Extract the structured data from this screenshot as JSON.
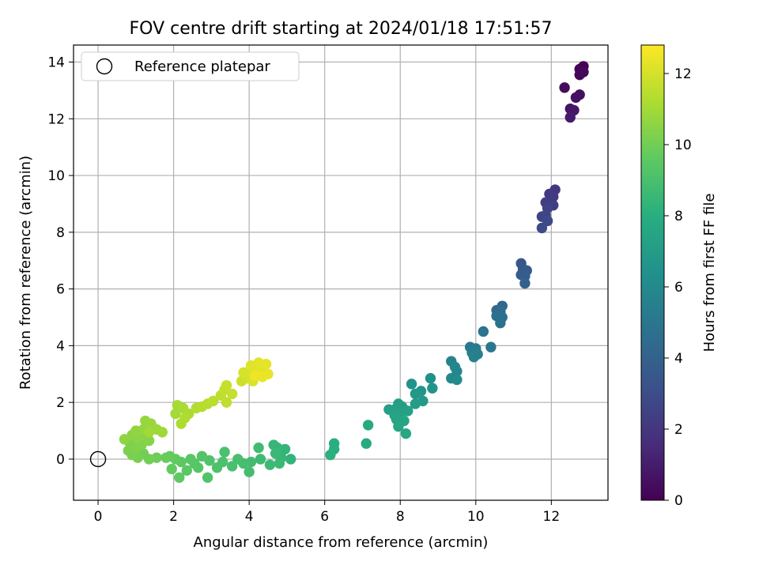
{
  "chart_data": {
    "type": "scatter",
    "title": "FOV centre drift starting at 2024/01/18 17:51:57",
    "xlabel": "Angular distance from reference (arcmin)",
    "ylabel": "Rotation from reference (arcmin)",
    "xlim": [
      -0.65,
      13.5
    ],
    "ylim": [
      -1.45,
      14.6
    ],
    "xticks": [
      0,
      2,
      4,
      6,
      8,
      10,
      12
    ],
    "yticks": [
      0,
      2,
      4,
      6,
      8,
      10,
      12,
      14
    ],
    "grid": true,
    "legend": {
      "position": "top-left",
      "entries": [
        "Reference platepar"
      ]
    },
    "reference_point": {
      "x": 0,
      "y": 0
    },
    "colorbar": {
      "label": "Hours from first FF file",
      "colormap": "viridis",
      "range": [
        0,
        12.8
      ],
      "ticks": [
        0,
        2,
        4,
        6,
        8,
        10,
        12
      ]
    },
    "points": [
      {
        "x": 12.75,
        "y": 13.75,
        "c": 0.0
      },
      {
        "x": 12.85,
        "y": 13.85,
        "c": 0.1
      },
      {
        "x": 12.75,
        "y": 13.55,
        "c": 0.2
      },
      {
        "x": 12.85,
        "y": 13.65,
        "c": 0.3
      },
      {
        "x": 12.35,
        "y": 13.1,
        "c": 0.4
      },
      {
        "x": 12.75,
        "y": 12.85,
        "c": 0.5
      },
      {
        "x": 12.65,
        "y": 12.75,
        "c": 0.6
      },
      {
        "x": 12.5,
        "y": 12.35,
        "c": 0.7
      },
      {
        "x": 12.6,
        "y": 12.3,
        "c": 0.8
      },
      {
        "x": 12.5,
        "y": 12.05,
        "c": 0.9
      },
      {
        "x": 12.1,
        "y": 9.5,
        "c": 2.0
      },
      {
        "x": 11.95,
        "y": 9.35,
        "c": 2.1
      },
      {
        "x": 12.05,
        "y": 9.25,
        "c": 2.2
      },
      {
        "x": 11.85,
        "y": 9.05,
        "c": 2.3
      },
      {
        "x": 12.05,
        "y": 8.95,
        "c": 2.4
      },
      {
        "x": 11.9,
        "y": 8.85,
        "c": 2.5
      },
      {
        "x": 11.75,
        "y": 8.55,
        "c": 2.6
      },
      {
        "x": 11.85,
        "y": 8.6,
        "c": 2.7
      },
      {
        "x": 11.9,
        "y": 8.4,
        "c": 2.8
      },
      {
        "x": 11.75,
        "y": 8.15,
        "c": 2.9
      },
      {
        "x": 11.2,
        "y": 6.9,
        "c": 3.4
      },
      {
        "x": 11.25,
        "y": 6.7,
        "c": 3.5
      },
      {
        "x": 11.35,
        "y": 6.65,
        "c": 3.6
      },
      {
        "x": 11.2,
        "y": 6.5,
        "c": 3.7
      },
      {
        "x": 11.3,
        "y": 6.45,
        "c": 3.8
      },
      {
        "x": 11.3,
        "y": 6.2,
        "c": 3.9
      },
      {
        "x": 10.7,
        "y": 5.4,
        "c": 4.3
      },
      {
        "x": 10.55,
        "y": 5.25,
        "c": 4.4
      },
      {
        "x": 10.65,
        "y": 5.2,
        "c": 4.5
      },
      {
        "x": 10.55,
        "y": 5.05,
        "c": 4.6
      },
      {
        "x": 10.7,
        "y": 5.0,
        "c": 4.7
      },
      {
        "x": 10.65,
        "y": 4.8,
        "c": 4.8
      },
      {
        "x": 10.2,
        "y": 4.5,
        "c": 4.9
      },
      {
        "x": 10.4,
        "y": 3.95,
        "c": 5.0
      },
      {
        "x": 9.85,
        "y": 3.95,
        "c": 5.1
      },
      {
        "x": 10.0,
        "y": 3.9,
        "c": 5.2
      },
      {
        "x": 9.9,
        "y": 3.75,
        "c": 5.3
      },
      {
        "x": 10.05,
        "y": 3.7,
        "c": 5.4
      },
      {
        "x": 9.95,
        "y": 3.6,
        "c": 5.5
      },
      {
        "x": 9.35,
        "y": 3.45,
        "c": 5.7
      },
      {
        "x": 9.45,
        "y": 3.25,
        "c": 5.8
      },
      {
        "x": 9.5,
        "y": 3.1,
        "c": 5.9
      },
      {
        "x": 9.35,
        "y": 2.85,
        "c": 6.0
      },
      {
        "x": 9.5,
        "y": 2.8,
        "c": 6.1
      },
      {
        "x": 8.8,
        "y": 2.85,
        "c": 6.4
      },
      {
        "x": 8.3,
        "y": 2.65,
        "c": 6.5
      },
      {
        "x": 8.85,
        "y": 2.5,
        "c": 6.6
      },
      {
        "x": 8.55,
        "y": 2.4,
        "c": 6.7
      },
      {
        "x": 8.4,
        "y": 2.3,
        "c": 6.8
      },
      {
        "x": 8.6,
        "y": 2.05,
        "c": 6.9
      },
      {
        "x": 8.4,
        "y": 1.95,
        "c": 7.0
      },
      {
        "x": 8.05,
        "y": 1.85,
        "c": 7.1
      },
      {
        "x": 7.95,
        "y": 1.95,
        "c": 7.15
      },
      {
        "x": 7.85,
        "y": 1.75,
        "c": 7.2
      },
      {
        "x": 7.7,
        "y": 1.75,
        "c": 7.25
      },
      {
        "x": 8.2,
        "y": 1.7,
        "c": 7.3
      },
      {
        "x": 8.0,
        "y": 1.6,
        "c": 7.35
      },
      {
        "x": 7.85,
        "y": 1.55,
        "c": 7.4
      },
      {
        "x": 7.9,
        "y": 1.4,
        "c": 7.45
      },
      {
        "x": 8.1,
        "y": 1.35,
        "c": 7.5
      },
      {
        "x": 7.95,
        "y": 1.15,
        "c": 7.55
      },
      {
        "x": 8.15,
        "y": 0.9,
        "c": 7.6
      },
      {
        "x": 7.15,
        "y": 1.2,
        "c": 7.7
      },
      {
        "x": 7.1,
        "y": 0.55,
        "c": 7.8
      },
      {
        "x": 6.25,
        "y": 0.55,
        "c": 8.0
      },
      {
        "x": 6.25,
        "y": 0.35,
        "c": 8.05
      },
      {
        "x": 6.15,
        "y": 0.15,
        "c": 8.1
      },
      {
        "x": 5.1,
        "y": 0.0,
        "c": 8.3
      },
      {
        "x": 4.95,
        "y": 0.35,
        "c": 8.35
      },
      {
        "x": 4.85,
        "y": 0.05,
        "c": 8.4
      },
      {
        "x": 4.75,
        "y": 0.4,
        "c": 8.45
      },
      {
        "x": 4.65,
        "y": 0.5,
        "c": 8.5
      },
      {
        "x": 4.7,
        "y": 0.2,
        "c": 8.55
      },
      {
        "x": 4.8,
        "y": -0.15,
        "c": 8.6
      },
      {
        "x": 4.55,
        "y": -0.2,
        "c": 8.65
      },
      {
        "x": 4.3,
        "y": 0.0,
        "c": 8.7
      },
      {
        "x": 4.25,
        "y": 0.4,
        "c": 8.75
      },
      {
        "x": 4.05,
        "y": -0.1,
        "c": 8.8
      },
      {
        "x": 4.0,
        "y": -0.45,
        "c": 8.85
      },
      {
        "x": 3.85,
        "y": -0.15,
        "c": 8.9
      },
      {
        "x": 3.7,
        "y": 0.0,
        "c": 8.95
      },
      {
        "x": 3.55,
        "y": -0.25,
        "c": 9.0
      },
      {
        "x": 3.35,
        "y": 0.25,
        "c": 9.05
      },
      {
        "x": 3.3,
        "y": -0.1,
        "c": 9.1
      },
      {
        "x": 3.15,
        "y": -0.3,
        "c": 9.15
      },
      {
        "x": 2.95,
        "y": -0.05,
        "c": 9.2
      },
      {
        "x": 2.9,
        "y": -0.65,
        "c": 9.25
      },
      {
        "x": 2.75,
        "y": 0.1,
        "c": 9.3
      },
      {
        "x": 2.65,
        "y": -0.3,
        "c": 9.35
      },
      {
        "x": 2.55,
        "y": -0.15,
        "c": 9.4
      },
      {
        "x": 2.45,
        "y": 0.0,
        "c": 9.45
      },
      {
        "x": 2.35,
        "y": -0.4,
        "c": 9.5
      },
      {
        "x": 2.2,
        "y": -0.1,
        "c": 9.55
      },
      {
        "x": 2.15,
        "y": -0.65,
        "c": 9.6
      },
      {
        "x": 2.05,
        "y": 0.0,
        "c": 9.65
      },
      {
        "x": 1.95,
        "y": -0.35,
        "c": 9.7
      },
      {
        "x": 1.9,
        "y": 0.1,
        "c": 9.75
      },
      {
        "x": 1.8,
        "y": 0.05,
        "c": 9.8
      },
      {
        "x": 1.55,
        "y": 0.05,
        "c": 9.9
      },
      {
        "x": 1.35,
        "y": 0.0,
        "c": 10.0
      },
      {
        "x": 1.2,
        "y": 0.2,
        "c": 10.05
      },
      {
        "x": 1.05,
        "y": 0.05,
        "c": 10.1
      },
      {
        "x": 0.9,
        "y": 0.15,
        "c": 10.15
      },
      {
        "x": 0.8,
        "y": 0.3,
        "c": 10.2
      },
      {
        "x": 0.85,
        "y": 0.55,
        "c": 10.25
      },
      {
        "x": 1.0,
        "y": 0.4,
        "c": 10.3
      },
      {
        "x": 1.15,
        "y": 0.5,
        "c": 10.35
      },
      {
        "x": 1.35,
        "y": 0.65,
        "c": 10.4
      },
      {
        "x": 1.25,
        "y": 0.85,
        "c": 10.45
      },
      {
        "x": 1.05,
        "y": 0.75,
        "c": 10.5
      },
      {
        "x": 0.9,
        "y": 0.85,
        "c": 10.55
      },
      {
        "x": 0.7,
        "y": 0.7,
        "c": 10.6
      },
      {
        "x": 1.0,
        "y": 1.0,
        "c": 10.65
      },
      {
        "x": 1.2,
        "y": 1.05,
        "c": 10.7
      },
      {
        "x": 1.25,
        "y": 1.35,
        "c": 10.75
      },
      {
        "x": 1.4,
        "y": 1.25,
        "c": 10.8
      },
      {
        "x": 1.55,
        "y": 1.05,
        "c": 10.85
      },
      {
        "x": 1.7,
        "y": 0.95,
        "c": 10.9
      },
      {
        "x": 1.35,
        "y": 0.95,
        "c": 10.95
      },
      {
        "x": 2.05,
        "y": 1.6,
        "c": 11.0
      },
      {
        "x": 2.1,
        "y": 1.9,
        "c": 11.05
      },
      {
        "x": 2.25,
        "y": 1.8,
        "c": 11.1
      },
      {
        "x": 2.4,
        "y": 1.6,
        "c": 11.15
      },
      {
        "x": 2.2,
        "y": 1.25,
        "c": 11.2
      },
      {
        "x": 2.3,
        "y": 1.45,
        "c": 11.25
      },
      {
        "x": 2.6,
        "y": 1.8,
        "c": 11.3
      },
      {
        "x": 2.75,
        "y": 1.85,
        "c": 11.35
      },
      {
        "x": 2.9,
        "y": 1.95,
        "c": 11.4
      },
      {
        "x": 3.05,
        "y": 2.05,
        "c": 11.45
      },
      {
        "x": 3.25,
        "y": 2.25,
        "c": 11.5
      },
      {
        "x": 3.4,
        "y": 2.0,
        "c": 11.55
      },
      {
        "x": 3.35,
        "y": 2.45,
        "c": 11.6
      },
      {
        "x": 3.55,
        "y": 2.3,
        "c": 11.65
      },
      {
        "x": 3.4,
        "y": 2.6,
        "c": 11.7
      },
      {
        "x": 3.8,
        "y": 2.75,
        "c": 11.8
      },
      {
        "x": 3.95,
        "y": 2.85,
        "c": 11.9
      },
      {
        "x": 3.85,
        "y": 3.05,
        "c": 12.0
      },
      {
        "x": 4.0,
        "y": 3.1,
        "c": 12.05
      },
      {
        "x": 4.1,
        "y": 2.75,
        "c": 12.1
      },
      {
        "x": 4.2,
        "y": 3.0,
        "c": 12.15
      },
      {
        "x": 4.05,
        "y": 3.3,
        "c": 12.2
      },
      {
        "x": 4.3,
        "y": 3.2,
        "c": 12.25
      },
      {
        "x": 4.25,
        "y": 3.4,
        "c": 12.3
      },
      {
        "x": 4.45,
        "y": 3.35,
        "c": 12.35
      },
      {
        "x": 4.5,
        "y": 3.0,
        "c": 12.4
      },
      {
        "x": 4.35,
        "y": 2.9,
        "c": 12.45
      },
      {
        "x": 4.15,
        "y": 2.95,
        "c": 12.5
      }
    ]
  }
}
